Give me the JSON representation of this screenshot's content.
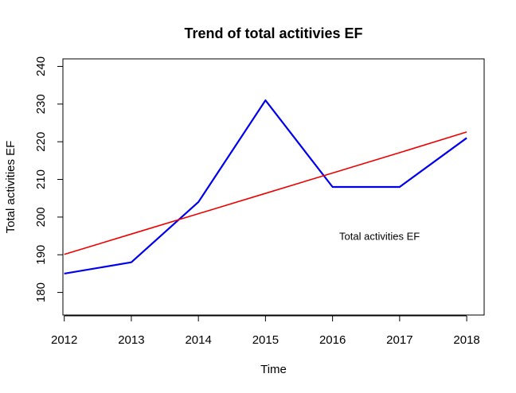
{
  "chart_data": {
    "type": "line",
    "title": "Trend of total actitivies EF",
    "xlabel": "Time",
    "ylabel": "Total activities EF",
    "x": [
      2012,
      2013,
      2014,
      2015,
      2016,
      2017,
      2018
    ],
    "xticks": [
      "2012",
      "2013",
      "2014",
      "2015",
      "2016",
      "2017",
      "2018"
    ],
    "yticks": [
      "180",
      "190",
      "200",
      "210",
      "220",
      "230",
      "240"
    ],
    "xlim": [
      2011.98,
      2018.26
    ],
    "ylim": [
      174,
      242
    ],
    "series": [
      {
        "values": [
          185,
          188,
          204,
          231,
          208,
          208,
          221
        ],
        "color": "#0000ee"
      },
      {
        "values": [
          190.1,
          195.5,
          200.9,
          206.3,
          211.7,
          217.1,
          222.6
        ],
        "color": "#ee0000"
      }
    ],
    "annotation": {
      "text": "Total activities EF",
      "x": 2016.1,
      "y": 195
    },
    "grid": false
  }
}
